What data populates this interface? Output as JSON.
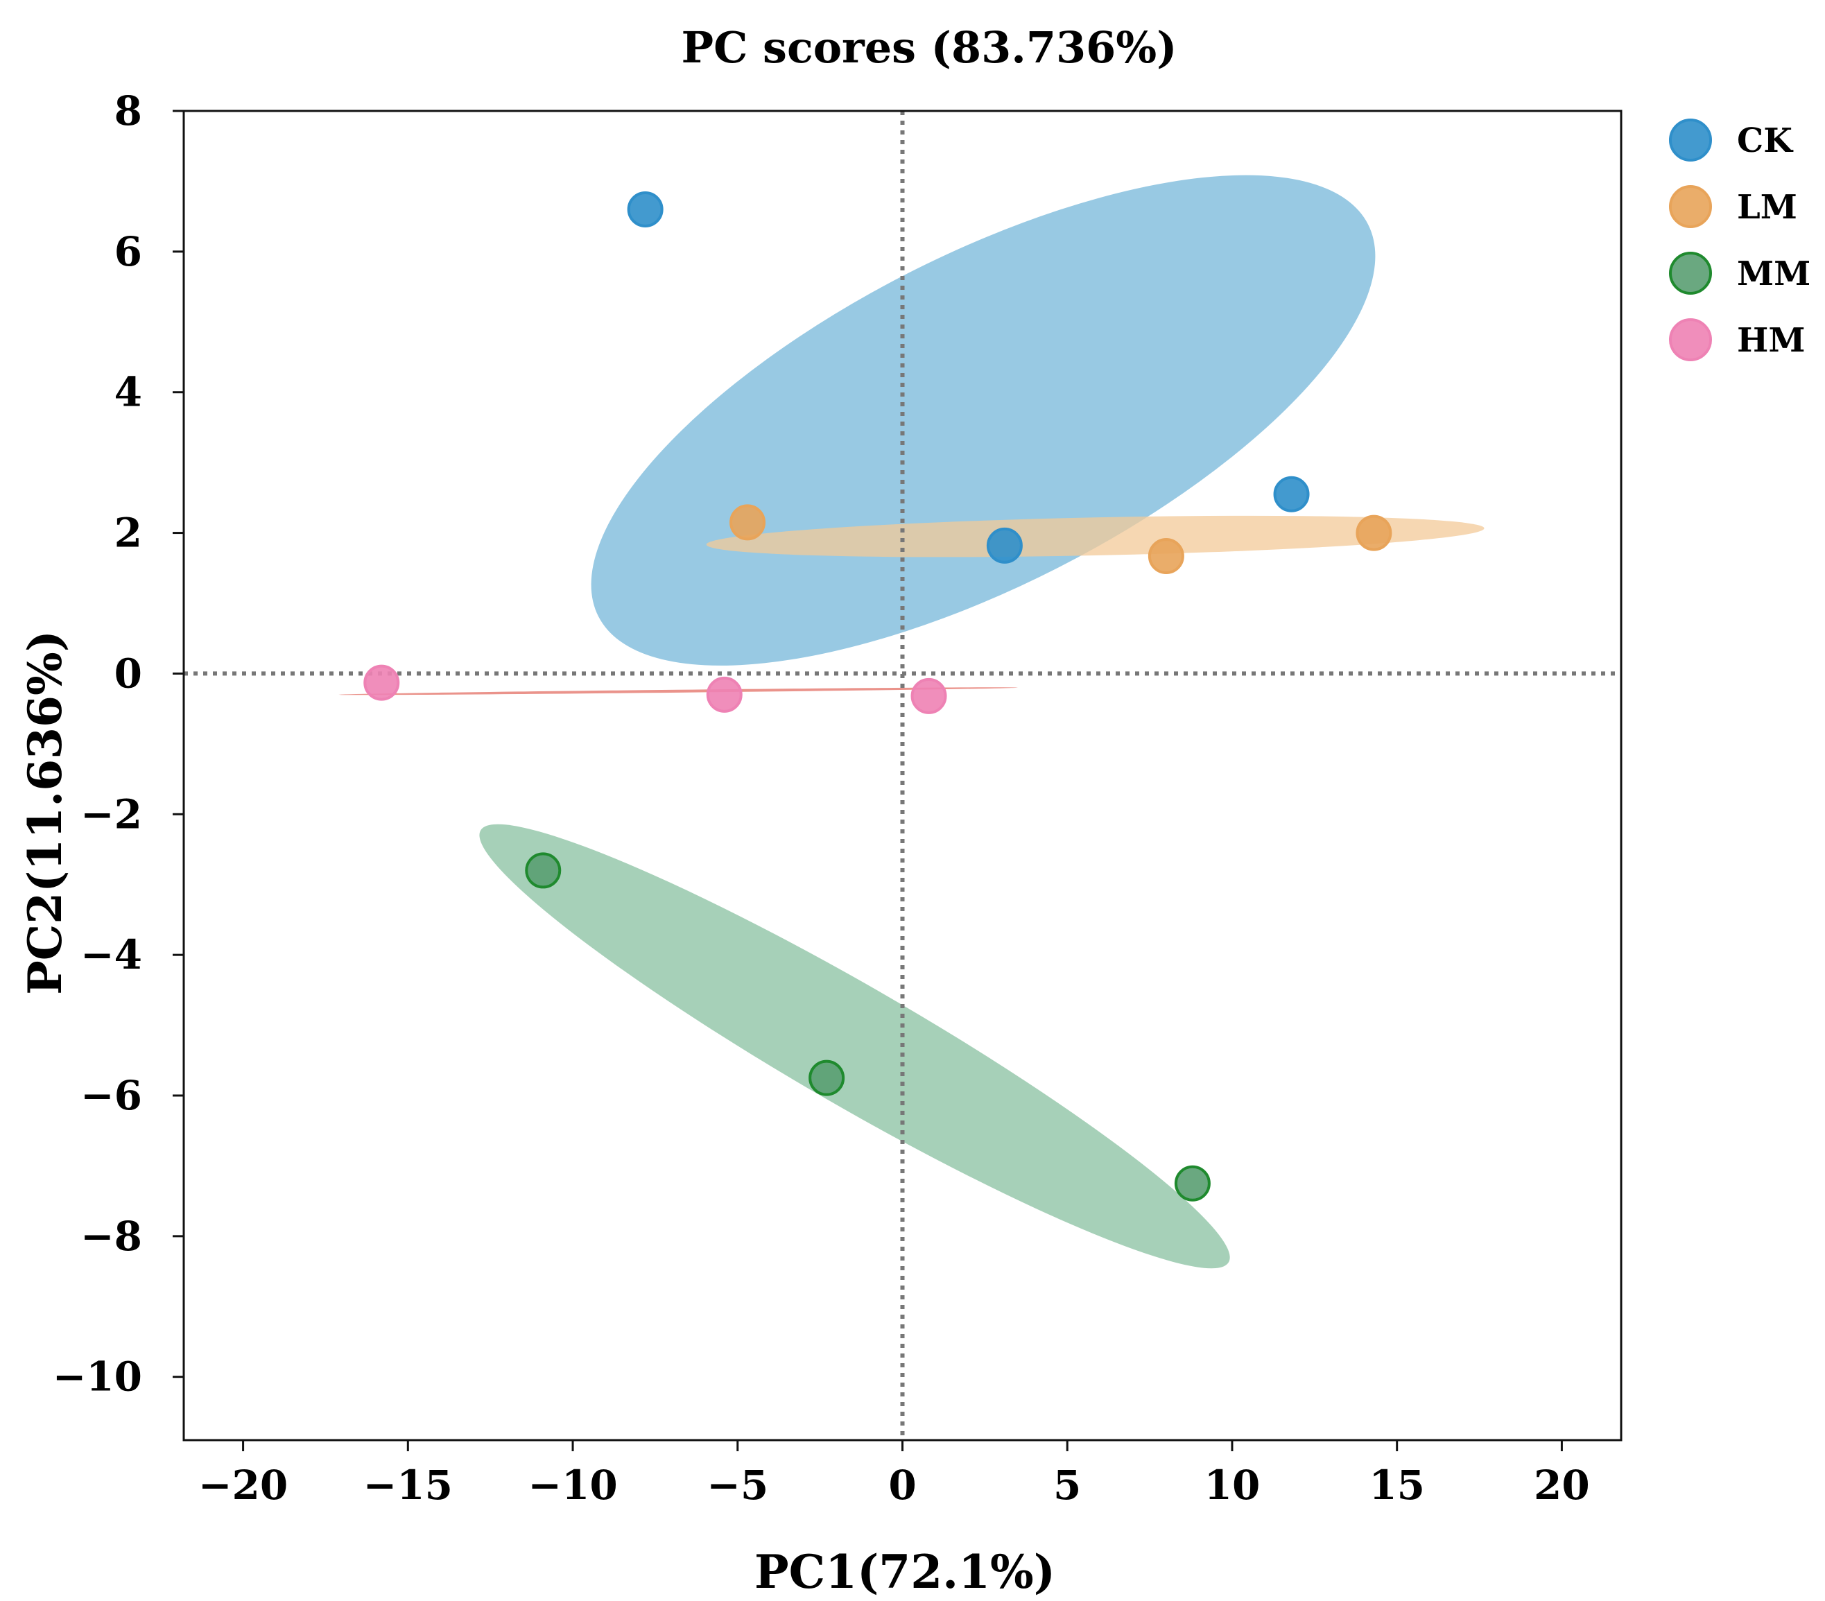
{
  "chart_data": {
    "type": "scatter",
    "title": "PC scores (83.736%)",
    "xlabel": "PC1(72.1%)",
    "ylabel": "PC2(11.636%)",
    "xlim": [
      -21.8,
      21.8
    ],
    "ylim": [
      -10.9,
      8.0
    ],
    "xticks": [
      -20,
      -15,
      -10,
      -5,
      0,
      5,
      10,
      15,
      20
    ],
    "yticks": [
      8,
      6,
      4,
      2,
      0,
      -2,
      -4,
      -6,
      -8,
      -10
    ],
    "xtick_labels": [
      "−20",
      "−15",
      "−10",
      "−5",
      "0",
      "5",
      "10",
      "15",
      "20"
    ],
    "ytick_labels": [
      "8",
      "6",
      "4",
      "2",
      "0",
      "−2",
      "−4",
      "−6",
      "−8",
      "−10"
    ],
    "grid": false,
    "reference_lines": {
      "x": 0,
      "y": 0,
      "style": "dotted"
    },
    "legend_position": "outside-top-right",
    "series": [
      {
        "name": "CK",
        "color": "#2f8fca",
        "ellipse_color": "#8dc3e0",
        "points": [
          {
            "x": -7.8,
            "y": 6.6
          },
          {
            "x": 11.8,
            "y": 2.55
          },
          {
            "x": 3.1,
            "y": 1.82
          }
        ],
        "ellipse": {
          "cx": 2.45,
          "cy": 3.6,
          "rx": 13.1,
          "ry": 2.35,
          "rotation_deg": -27
        }
      },
      {
        "name": "LM",
        "color": "#e8a45a",
        "ellipse_color": "#f3c998",
        "points": [
          {
            "x": -4.7,
            "y": 2.15
          },
          {
            "x": 14.3,
            "y": 2.0
          },
          {
            "x": 8.0,
            "y": 1.67
          }
        ],
        "ellipse": {
          "cx": 5.85,
          "cy": 1.95,
          "rx": 11.8,
          "ry": 0.27,
          "rotation_deg": -1.2
        }
      },
      {
        "name": "MM",
        "color": "#5a9e72",
        "ellipse_color": "#9ccbb0",
        "points": [
          {
            "x": -10.9,
            "y": -2.8
          },
          {
            "x": -2.3,
            "y": -5.75
          },
          {
            "x": 8.8,
            "y": -7.25
          }
        ],
        "ellipse": {
          "cx": -1.45,
          "cy": -5.3,
          "rx": 13.1,
          "ry": 0.85,
          "rotation_deg": 30
        }
      },
      {
        "name": "HM",
        "color": "#ee82b4",
        "ellipse_color": "#e8877e",
        "points": [
          {
            "x": -15.8,
            "y": -0.13
          },
          {
            "x": -5.4,
            "y": -0.3
          },
          {
            "x": 0.8,
            "y": -0.32
          }
        ],
        "ellipse": {
          "cx": -6.8,
          "cy": -0.25,
          "rx": 10.3,
          "ry": 0.02,
          "rotation_deg": -0.6
        }
      }
    ]
  }
}
